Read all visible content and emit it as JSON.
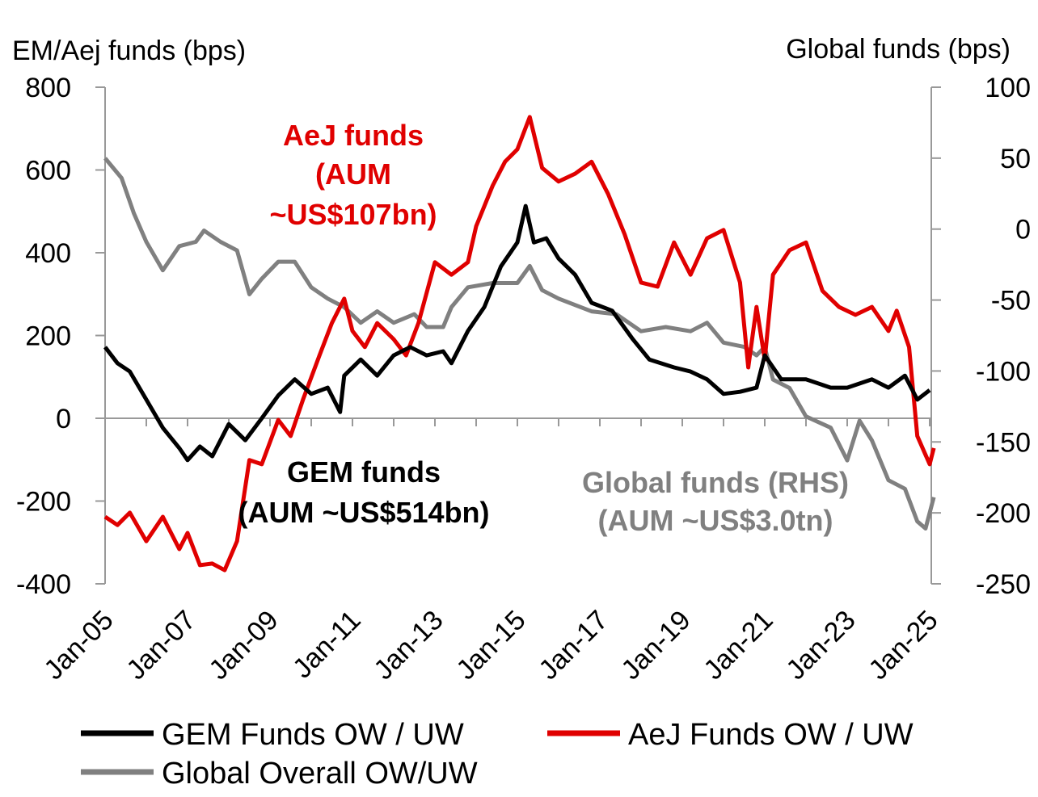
{
  "chart_data": {
    "type": "line",
    "left_axis_label": "EM/Aej funds (bps)",
    "right_axis_label": "Global funds (bps)",
    "left_ylim": [
      -400,
      800
    ],
    "left_ticks": [
      "800",
      "600",
      "400",
      "200",
      "0",
      "-200",
      "-400"
    ],
    "right_ylim": [
      -250,
      100
    ],
    "right_ticks": [
      "100",
      "50",
      "0",
      "-50",
      "-100",
      "-150",
      "-200",
      "-250"
    ],
    "x_ticks": [
      "Jan-05",
      "Jan-07",
      "Jan-09",
      "Jan-11",
      "Jan-13",
      "Jan-15",
      "Jan-17",
      "Jan-19",
      "Jan-21",
      "Jan-23",
      "Jan-25"
    ],
    "annotations": {
      "aej": [
        "AeJ funds",
        "(AUM",
        "~US$107bn)"
      ],
      "gem": [
        "GEM funds",
        "(AUM ~US$514bn)"
      ],
      "global": [
        "Global funds (RHS)",
        "(AUM ~US$3.0tn)"
      ]
    },
    "legend_placement": "bottom",
    "series": [
      {
        "name": "GEM Funds OW / UW",
        "axis": "left",
        "color": "#000000",
        "x": [
          2005.0,
          2005.3,
          2005.6,
          2006.0,
          2006.4,
          2006.8,
          2007.0,
          2007.3,
          2007.6,
          2008.0,
          2008.4,
          2008.8,
          2009.2,
          2009.6,
          2010.0,
          2010.4,
          2010.7,
          2010.8,
          2011.2,
          2011.6,
          2012.0,
          2012.4,
          2012.8,
          2013.2,
          2013.4,
          2013.8,
          2014.2,
          2014.6,
          2015.0,
          2015.2,
          2015.4,
          2015.7,
          2016.0,
          2016.4,
          2016.8,
          2017.3,
          2017.8,
          2018.2,
          2018.8,
          2019.2,
          2019.6,
          2020.0,
          2020.4,
          2020.8,
          2021.0,
          2021.4,
          2022.0,
          2022.6,
          2023.0,
          2023.6,
          2024.0,
          2024.4,
          2024.7,
          2025.0
        ],
        "y": [
          172,
          133,
          113,
          45,
          -23,
          -72,
          -101,
          -68,
          -92,
          -14,
          -53,
          0,
          55,
          94,
          59,
          74,
          15,
          103,
          142,
          103,
          152,
          172,
          152,
          162,
          133,
          211,
          269,
          367,
          425,
          513,
          425,
          435,
          386,
          347,
          279,
          260,
          191,
          142,
          123,
          113,
          94,
          59,
          64,
          74,
          152,
          94,
          94,
          74,
          74,
          94,
          74,
          103,
          45,
          68
        ]
      },
      {
        "name": "AeJ Funds OW / UW",
        "axis": "left",
        "color": "#e00000",
        "x": [
          2005.0,
          2005.3,
          2005.6,
          2006.0,
          2006.4,
          2006.8,
          2007.0,
          2007.3,
          2007.6,
          2007.9,
          2008.2,
          2008.5,
          2008.8,
          2009.2,
          2009.5,
          2009.8,
          2010.2,
          2010.5,
          2010.8,
          2011.0,
          2011.3,
          2011.6,
          2012.0,
          2012.3,
          2012.6,
          2013.0,
          2013.4,
          2013.8,
          2014.0,
          2014.4,
          2014.7,
          2015.0,
          2015.3,
          2015.6,
          2016.0,
          2016.4,
          2016.8,
          2017.2,
          2017.6,
          2018.0,
          2018.4,
          2018.8,
          2019.2,
          2019.6,
          2020.0,
          2020.4,
          2020.6,
          2020.8,
          2021.0,
          2021.2,
          2021.6,
          2022.0,
          2022.4,
          2022.8,
          2023.2,
          2023.6,
          2024.0,
          2024.2,
          2024.5,
          2024.7,
          2025.0,
          2025.1
        ],
        "y": [
          -238,
          -258,
          -228,
          -297,
          -238,
          -316,
          -277,
          -355,
          -351,
          -367,
          -297,
          -101,
          -111,
          -4,
          -43,
          45,
          152,
          230,
          289,
          211,
          172,
          230,
          191,
          152,
          230,
          377,
          347,
          377,
          464,
          562,
          620,
          650,
          728,
          605,
          572,
          591,
          620,
          542,
          445,
          328,
          318,
          425,
          347,
          435,
          455,
          328,
          123,
          269,
          142,
          347,
          406,
          425,
          308,
          269,
          250,
          269,
          211,
          260,
          172,
          -43,
          -111,
          -72
        ]
      },
      {
        "name": "Global Overall OW/UW",
        "axis": "right",
        "color": "#808080",
        "x": [
          2005.0,
          2005.4,
          2005.7,
          2006.0,
          2006.4,
          2006.8,
          2007.2,
          2007.4,
          2007.8,
          2008.2,
          2008.5,
          2008.8,
          2009.2,
          2009.6,
          2010.0,
          2010.4,
          2010.8,
          2011.2,
          2011.6,
          2012.0,
          2012.5,
          2012.8,
          2013.2,
          2013.4,
          2013.8,
          2014.4,
          2015.0,
          2015.3,
          2015.6,
          2016.0,
          2016.8,
          2017.4,
          2018.0,
          2018.6,
          2019.2,
          2019.6,
          2020.0,
          2020.5,
          2020.8,
          2021.0,
          2021.2,
          2021.6,
          2022.0,
          2022.6,
          2023.0,
          2023.3,
          2023.6,
          2024.0,
          2024.4,
          2024.7,
          2024.9,
          2025.1
        ],
        "y": [
          50,
          36,
          11,
          -9,
          -29,
          -12,
          -9,
          -1,
          -9,
          -15,
          -46,
          -35,
          -23,
          -23,
          -41,
          -49,
          -55,
          -66,
          -58,
          -66,
          -60,
          -69,
          -69,
          -55,
          -41,
          -38,
          -38,
          -26,
          -43,
          -49,
          -58,
          -60,
          -72,
          -69,
          -72,
          -66,
          -80,
          -83,
          -89,
          -83,
          -106,
          -112,
          -132,
          -140,
          -163,
          -135,
          -149,
          -177,
          -183,
          -206,
          -211,
          -189
        ]
      }
    ]
  }
}
